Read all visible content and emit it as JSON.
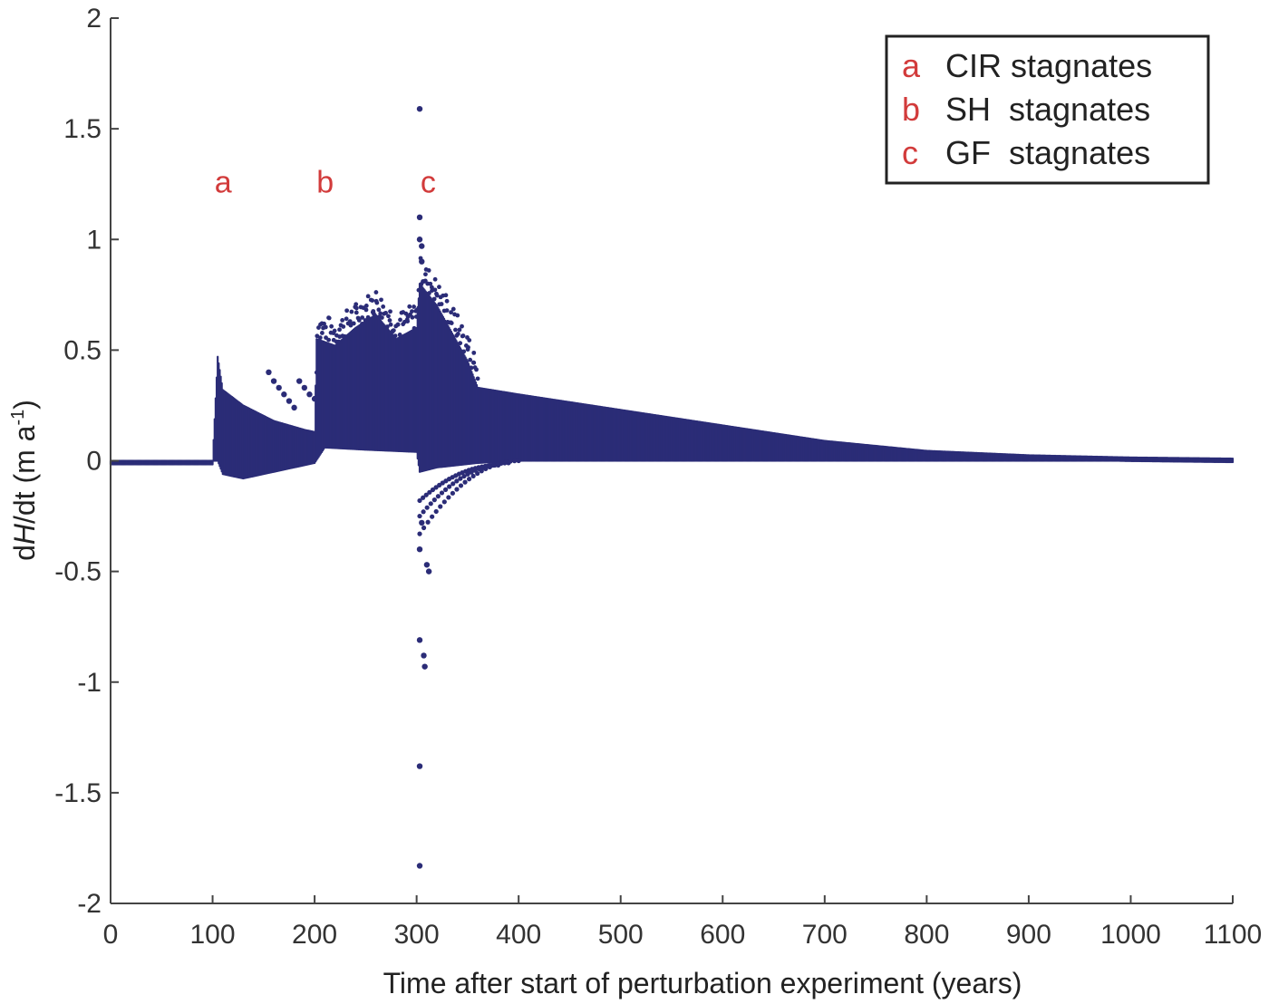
{
  "chart_data": {
    "type": "scatter",
    "title": "",
    "xlabel": "Time after start of perturbation experiment (years)",
    "ylabel_parts": [
      "d",
      "H",
      "/dt (m a",
      "-1",
      ")"
    ],
    "xlim": [
      0,
      1100
    ],
    "ylim": [
      -2,
      2
    ],
    "xticks": [
      0,
      100,
      200,
      300,
      400,
      500,
      600,
      700,
      800,
      900,
      1000,
      1100
    ],
    "yticks": [
      -2,
      -1.5,
      -1,
      -0.5,
      0,
      0.5,
      1,
      1.5,
      2
    ],
    "xtick_labels": [
      "0",
      "100",
      "200",
      "300",
      "400",
      "500",
      "600",
      "700",
      "800",
      "900",
      "1000",
      "1100"
    ],
    "ytick_labels": [
      "-2",
      "-1.5",
      "-1",
      "-0.5",
      "0",
      "0.5",
      "1",
      "1.5",
      "2"
    ],
    "grid": false,
    "series": [
      {
        "color": "#2b2c77",
        "markers": "dots",
        "segments": [
          {
            "x0": 0,
            "x1": 100,
            "upper": [
              0.0,
              0.0
            ],
            "lower": [
              0.0,
              0.0
            ]
          },
          {
            "x0": 100,
            "x1": 200,
            "upper": [
              0.47,
              0.12
            ],
            "lower": [
              -0.03,
              -0.02
            ]
          },
          {
            "x0": 200,
            "x1": 300,
            "upper": [
              0.55,
              0.45
            ],
            "lower": [
              0.05,
              0.05
            ]
          },
          {
            "x0": 300,
            "x1": 1100,
            "upper": [
              0.35,
              0.01
            ],
            "lower": [
              0.0,
              0.0
            ]
          }
        ],
        "upper_envelope": [
          [
            0,
            0
          ],
          [
            100,
            0
          ],
          [
            105,
            0.47
          ],
          [
            110,
            0.32
          ],
          [
            130,
            0.25
          ],
          [
            160,
            0.18
          ],
          [
            190,
            0.14
          ],
          [
            200,
            0.13
          ],
          [
            202,
            0.55
          ],
          [
            220,
            0.52
          ],
          [
            240,
            0.6
          ],
          [
            260,
            0.66
          ],
          [
            280,
            0.55
          ],
          [
            300,
            0.6
          ],
          [
            303,
            0.8
          ],
          [
            320,
            0.7
          ],
          [
            350,
            0.45
          ],
          [
            360,
            0.33
          ],
          [
            400,
            0.3
          ],
          [
            500,
            0.23
          ],
          [
            600,
            0.16
          ],
          [
            700,
            0.09
          ],
          [
            800,
            0.045
          ],
          [
            900,
            0.025
          ],
          [
            1000,
            0.015
          ],
          [
            1100,
            0.01
          ]
        ],
        "lower_envelope": [
          [
            0,
            0
          ],
          [
            100,
            0
          ],
          [
            105,
            0.0
          ],
          [
            110,
            -0.06
          ],
          [
            130,
            -0.08
          ],
          [
            160,
            -0.05
          ],
          [
            200,
            -0.01
          ],
          [
            210,
            0.06
          ],
          [
            250,
            0.05
          ],
          [
            300,
            0.04
          ],
          [
            303,
            -0.05
          ],
          [
            320,
            -0.03
          ],
          [
            360,
            -0.01
          ],
          [
            400,
            0.0
          ],
          [
            1100,
            0.0
          ]
        ],
        "notable_points": [
          {
            "x": 303,
            "y": 1.59
          },
          {
            "x": 303,
            "y": 1.1
          },
          {
            "x": 303,
            "y": 1.0
          },
          {
            "x": 305,
            "y": 0.97
          },
          {
            "x": 305,
            "y": 0.9
          },
          {
            "x": 303,
            "y": -1.83
          },
          {
            "x": 303,
            "y": -1.38
          },
          {
            "x": 303,
            "y": -0.81
          },
          {
            "x": 307,
            "y": -0.88
          },
          {
            "x": 308,
            "y": -0.93
          },
          {
            "x": 312,
            "y": -0.5
          },
          {
            "x": 310,
            "y": -0.47
          },
          {
            "x": 303,
            "y": -0.4
          },
          {
            "x": 305,
            "y": -0.28
          },
          {
            "x": 155,
            "y": 0.4
          },
          {
            "x": 160,
            "y": 0.36
          },
          {
            "x": 165,
            "y": 0.33
          },
          {
            "x": 170,
            "y": 0.3
          },
          {
            "x": 175,
            "y": 0.27
          },
          {
            "x": 180,
            "y": 0.24
          },
          {
            "x": 185,
            "y": 0.36
          },
          {
            "x": 190,
            "y": 0.33
          },
          {
            "x": 195,
            "y": 0.3
          },
          {
            "x": 200,
            "y": 0.28
          }
        ],
        "recovery_arcs": [
          {
            "x0": 303,
            "y0": -0.18,
            "x1": 380,
            "y1": -0.02
          },
          {
            "x0": 303,
            "y0": -0.25,
            "x1": 390,
            "y1": -0.01
          },
          {
            "x0": 303,
            "y0": -0.33,
            "x1": 400,
            "y1": 0.0
          }
        ]
      }
    ],
    "annotations": [
      {
        "label": "a",
        "x": 105,
        "y": 1.26,
        "color": "#d23b3b"
      },
      {
        "label": "b",
        "x": 205,
        "y": 1.26,
        "color": "#d23b3b"
      },
      {
        "label": "c",
        "x": 306,
        "y": 1.26,
        "color": "#d23b3b"
      }
    ],
    "legend": {
      "position": "top-right",
      "entries": [
        {
          "key": "a",
          "text": "CIR stagnates"
        },
        {
          "key": "b",
          "text": "SH  stagnates"
        },
        {
          "key": "c",
          "text": "GF  stagnates"
        }
      ],
      "key_color": "#d23b3b"
    }
  }
}
